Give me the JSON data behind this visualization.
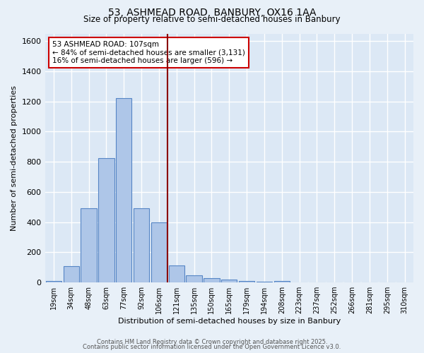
{
  "title_line1": "53, ASHMEAD ROAD, BANBURY, OX16 1AA",
  "title_line2": "Size of property relative to semi-detached houses in Banbury",
  "xlabel": "Distribution of semi-detached houses by size in Banbury",
  "ylabel": "Number of semi-detached properties",
  "bar_labels": [
    "19sqm",
    "34sqm",
    "48sqm",
    "63sqm",
    "77sqm",
    "92sqm",
    "106sqm",
    "121sqm",
    "135sqm",
    "150sqm",
    "165sqm",
    "179sqm",
    "194sqm",
    "208sqm",
    "223sqm",
    "237sqm",
    "252sqm",
    "266sqm",
    "281sqm",
    "295sqm",
    "310sqm"
  ],
  "bar_values": [
    10,
    107,
    493,
    823,
    1221,
    493,
    400,
    112,
    48,
    30,
    18,
    10,
    7,
    10,
    2,
    0,
    0,
    0,
    0,
    0,
    0
  ],
  "bar_color": "#aec6e8",
  "bar_edge_color": "#5585c5",
  "background_color": "#dce8f5",
  "fig_background_color": "#e8f0f8",
  "grid_color": "#ffffff",
  "vline_bin_index": 6,
  "vline_color": "#8b0000",
  "annotation_text": "53 ASHMEAD ROAD: 107sqm\n← 84% of semi-detached houses are smaller (3,131)\n16% of semi-detached houses are larger (596) →",
  "annotation_box_color": "#ffffff",
  "annotation_box_edge": "#cc0000",
  "ylim": [
    0,
    1650
  ],
  "yticks": [
    0,
    200,
    400,
    600,
    800,
    1000,
    1200,
    1400,
    1600
  ],
  "footer_line1": "Contains HM Land Registry data © Crown copyright and database right 2025.",
  "footer_line2": "Contains public sector information licensed under the Open Government Licence v3.0."
}
